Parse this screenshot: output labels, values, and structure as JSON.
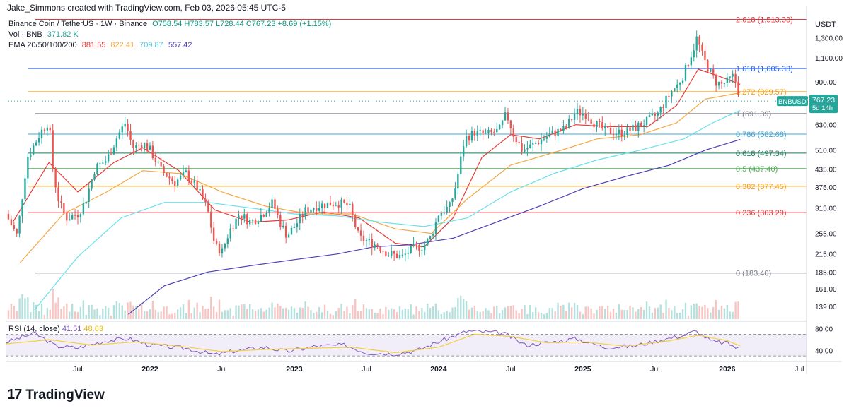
{
  "header": {
    "credit": "Jake_Simmons created with TradingView.com, Feb 03, 2026 05:45 UTC-5"
  },
  "legend": {
    "symbol": "Binance Coin / TetherUS · 1W · Binance",
    "ohlc": "O758.54 H783.57 L728.44 C767.23 +8.69 (+1.15%)",
    "vol_label": "Vol · BNB",
    "vol_value": "371.82 K",
    "ema_label": "EMA 20/50/100/200",
    "ema20": "881.55",
    "ema50": "822.41",
    "ema100": "709.87",
    "ema200": "557.42"
  },
  "colors": {
    "up": "#26a69a",
    "down": "#ef5350",
    "ema20": "#e53935",
    "ema50": "#f5a742",
    "ema100": "#67e0ee",
    "ema200": "#4a3fb5",
    "rsi": "#7e57c2",
    "rsi_ma": "#f4d03f"
  },
  "footer": {
    "logo_mark": "17",
    "brand": "TradingView"
  },
  "chart_data": {
    "type": "candlestick",
    "title": "Binance Coin / TetherUS · 1W · Binance",
    "y_axis_label": "USDT",
    "y_scale": "log",
    "ylim": [
      125,
      1600
    ],
    "y_ticks": [
      "1,300.00",
      "1,100.00",
      "900.00",
      "630.00",
      "510.00",
      "435.00",
      "375.00",
      "315.00",
      "255.00",
      "215.00",
      "185.00",
      "161.00",
      "139.00"
    ],
    "x_ticks": [
      "Jul",
      "2022",
      "Jul",
      "2023",
      "Jul",
      "2024",
      "Jul",
      "2025",
      "Jul",
      "2026",
      "Jul"
    ],
    "x_tick_years": [
      2021.5,
      2022.0,
      2022.5,
      2023.0,
      2023.5,
      2024.0,
      2024.5,
      2025.0,
      2025.5,
      2026.0,
      2026.5
    ],
    "x_range_years": [
      2021.0,
      2026.55
    ],
    "last_price": {
      "symbol": "BNBUSDT",
      "price": "767.23",
      "countdown": "5d 14h",
      "value": 767.23
    },
    "fib_levels": [
      {
        "label": "2.618 (1,513.33)",
        "value": 1513.33,
        "color": "#e03a3e"
      },
      {
        "label": "1.618 (1,005.33)",
        "value": 1005.33,
        "color": "#2962ff"
      },
      {
        "label": "1.272 (829.57)",
        "value": 829.57,
        "color": "#f39c12"
      },
      {
        "label": "1 (691.39)",
        "value": 691.39,
        "color": "#787b86"
      },
      {
        "label": "0.786 (582.68)",
        "value": 582.68,
        "color": "#3fa9d6"
      },
      {
        "label": "0.618 (497.34)",
        "value": 497.34,
        "color": "#1b7a5a"
      },
      {
        "label": "0.5 (437.40)",
        "value": 437.4,
        "color": "#4caf50"
      },
      {
        "label": "0.382 (377.45)",
        "value": 377.45,
        "color": "#f39c12"
      },
      {
        "label": "0.236 (303.29)",
        "value": 303.29,
        "color": "#e03a3e"
      },
      {
        "label": "0 (183.40)",
        "value": 183.4,
        "color": "#787b86"
      }
    ],
    "price_path": [
      [
        2021.0,
        300
      ],
      [
        2021.08,
        250
      ],
      [
        2021.15,
        480
      ],
      [
        2021.25,
        600
      ],
      [
        2021.3,
        650
      ],
      [
        2021.33,
        420
      ],
      [
        2021.37,
        330
      ],
      [
        2021.42,
        290
      ],
      [
        2021.5,
        300
      ],
      [
        2021.55,
        330
      ],
      [
        2021.62,
        440
      ],
      [
        2021.7,
        470
      ],
      [
        2021.78,
        580
      ],
      [
        2021.83,
        640
      ],
      [
        2021.88,
        520
      ],
      [
        2021.95,
        540
      ],
      [
        2022.0,
        510
      ],
      [
        2022.08,
        430
      ],
      [
        2022.17,
        390
      ],
      [
        2022.25,
        420
      ],
      [
        2022.33,
        370
      ],
      [
        2022.4,
        310
      ],
      [
        2022.45,
        230
      ],
      [
        2022.5,
        220
      ],
      [
        2022.55,
        260
      ],
      [
        2022.62,
        300
      ],
      [
        2022.7,
        280
      ],
      [
        2022.78,
        300
      ],
      [
        2022.85,
        330
      ],
      [
        2022.9,
        280
      ],
      [
        2022.95,
        250
      ],
      [
        2023.0,
        270
      ],
      [
        2023.08,
        310
      ],
      [
        2023.15,
        320
      ],
      [
        2023.22,
        325
      ],
      [
        2023.3,
        330
      ],
      [
        2023.38,
        320
      ],
      [
        2023.45,
        245
      ],
      [
        2023.5,
        240
      ],
      [
        2023.58,
        230
      ],
      [
        2023.65,
        215
      ],
      [
        2023.75,
        210
      ],
      [
        2023.82,
        225
      ],
      [
        2023.9,
        230
      ],
      [
        2023.95,
        250
      ],
      [
        2024.0,
        300
      ],
      [
        2024.08,
        320
      ],
      [
        2024.12,
        380
      ],
      [
        2024.18,
        560
      ],
      [
        2024.25,
        590
      ],
      [
        2024.33,
        580
      ],
      [
        2024.42,
        600
      ],
      [
        2024.47,
        690
      ],
      [
        2024.52,
        580
      ],
      [
        2024.58,
        510
      ],
      [
        2024.65,
        530
      ],
      [
        2024.72,
        560
      ],
      [
        2024.8,
        590
      ],
      [
        2024.88,
        610
      ],
      [
        2024.95,
        700
      ],
      [
        2025.02,
        690
      ],
      [
        2025.08,
        640
      ],
      [
        2025.15,
        600
      ],
      [
        2025.25,
        590
      ],
      [
        2025.32,
        600
      ],
      [
        2025.4,
        630
      ],
      [
        2025.45,
        650
      ],
      [
        2025.52,
        690
      ],
      [
        2025.58,
        780
      ],
      [
        2025.62,
        840
      ],
      [
        2025.66,
        880
      ],
      [
        2025.7,
        960
      ],
      [
        2025.74,
        1100
      ],
      [
        2025.77,
        1200
      ],
      [
        2025.79,
        1300
      ],
      [
        2025.82,
        1150
      ],
      [
        2025.85,
        1050
      ],
      [
        2025.88,
        980
      ],
      [
        2025.92,
        900
      ],
      [
        2025.96,
        880
      ],
      [
        2026.0,
        900
      ],
      [
        2026.04,
        940
      ],
      [
        2026.07,
        880
      ],
      [
        2026.09,
        767
      ]
    ],
    "ema_paths": [
      {
        "name": "EMA 20",
        "value": 881.55,
        "points": [
          [
            2021.05,
            280
          ],
          [
            2021.3,
            460
          ],
          [
            2021.5,
            360
          ],
          [
            2021.75,
            460
          ],
          [
            2021.95,
            520
          ],
          [
            2022.2,
            430
          ],
          [
            2022.45,
            310
          ],
          [
            2022.7,
            280
          ],
          [
            2022.95,
            285
          ],
          [
            2023.2,
            305
          ],
          [
            2023.45,
            290
          ],
          [
            2023.7,
            235
          ],
          [
            2023.9,
            228
          ],
          [
            2024.1,
            290
          ],
          [
            2024.3,
            480
          ],
          [
            2024.5,
            580
          ],
          [
            2024.7,
            560
          ],
          [
            2024.95,
            630
          ],
          [
            2025.2,
            620
          ],
          [
            2025.45,
            620
          ],
          [
            2025.65,
            740
          ],
          [
            2025.8,
            1000
          ],
          [
            2025.95,
            940
          ],
          [
            2026.09,
            882
          ]
        ]
      },
      {
        "name": "EMA 50",
        "value": 822.41,
        "points": [
          [
            2021.1,
            200
          ],
          [
            2021.4,
            300
          ],
          [
            2021.7,
            360
          ],
          [
            2021.95,
            430
          ],
          [
            2022.2,
            420
          ],
          [
            2022.5,
            360
          ],
          [
            2022.8,
            320
          ],
          [
            2023.1,
            300
          ],
          [
            2023.4,
            300
          ],
          [
            2023.7,
            265
          ],
          [
            2023.95,
            255
          ],
          [
            2024.2,
            340
          ],
          [
            2024.5,
            450
          ],
          [
            2024.8,
            500
          ],
          [
            2025.1,
            560
          ],
          [
            2025.4,
            580
          ],
          [
            2025.65,
            640
          ],
          [
            2025.85,
            780
          ],
          [
            2026.09,
            822
          ]
        ]
      },
      {
        "name": "EMA 100",
        "value": 709.87,
        "points": [
          [
            2021.2,
            135
          ],
          [
            2021.5,
            210
          ],
          [
            2021.8,
            290
          ],
          [
            2022.1,
            330
          ],
          [
            2022.4,
            330
          ],
          [
            2022.7,
            315
          ],
          [
            2023.0,
            300
          ],
          [
            2023.3,
            295
          ],
          [
            2023.6,
            280
          ],
          [
            2023.9,
            270
          ],
          [
            2024.2,
            290
          ],
          [
            2024.5,
            360
          ],
          [
            2024.8,
            420
          ],
          [
            2025.1,
            470
          ],
          [
            2025.4,
            510
          ],
          [
            2025.7,
            560
          ],
          [
            2025.9,
            640
          ],
          [
            2026.09,
            710
          ]
        ]
      },
      {
        "name": "EMA 200",
        "value": 557.42,
        "points": [
          [
            2021.85,
            130
          ],
          [
            2022.1,
            165
          ],
          [
            2022.4,
            185
          ],
          [
            2022.7,
            195
          ],
          [
            2023.0,
            205
          ],
          [
            2023.3,
            215
          ],
          [
            2023.55,
            228
          ],
          [
            2023.8,
            232
          ],
          [
            2024.1,
            245
          ],
          [
            2024.4,
            280
          ],
          [
            2024.7,
            320
          ],
          [
            2025.0,
            370
          ],
          [
            2025.3,
            410
          ],
          [
            2025.6,
            450
          ],
          [
            2025.85,
            510
          ],
          [
            2026.09,
            557
          ]
        ]
      }
    ],
    "rsi": {
      "label": "RSI (14, close)",
      "value": "41.51",
      "ma_value": "48.63",
      "ticks": [
        "80.00",
        "40.00"
      ],
      "ylim": [
        25,
        90
      ],
      "upper_band": 70,
      "lower_band": 30,
      "points": [
        [
          2021.0,
          55
        ],
        [
          2021.2,
          72
        ],
        [
          2021.35,
          48
        ],
        [
          2021.5,
          45
        ],
        [
          2021.7,
          58
        ],
        [
          2021.85,
          62
        ],
        [
          2022.0,
          50
        ],
        [
          2022.25,
          44
        ],
        [
          2022.45,
          32
        ],
        [
          2022.6,
          40
        ],
        [
          2022.8,
          46
        ],
        [
          2022.95,
          38
        ],
        [
          2023.15,
          48
        ],
        [
          2023.35,
          50
        ],
        [
          2023.5,
          36
        ],
        [
          2023.7,
          34
        ],
        [
          2023.85,
          40
        ],
        [
          2024.0,
          56
        ],
        [
          2024.2,
          76
        ],
        [
          2024.45,
          72
        ],
        [
          2024.6,
          50
        ],
        [
          2024.8,
          56
        ],
        [
          2024.95,
          62
        ],
        [
          2025.15,
          46
        ],
        [
          2025.35,
          48
        ],
        [
          2025.55,
          60
        ],
        [
          2025.7,
          68
        ],
        [
          2025.78,
          76
        ],
        [
          2025.9,
          56
        ],
        [
          2026.0,
          54
        ],
        [
          2026.09,
          41.5
        ]
      ],
      "ma_points": [
        [
          2021.0,
          52
        ],
        [
          2021.3,
          60
        ],
        [
          2021.6,
          50
        ],
        [
          2021.9,
          56
        ],
        [
          2022.2,
          48
        ],
        [
          2022.5,
          38
        ],
        [
          2022.8,
          42
        ],
        [
          2023.1,
          44
        ],
        [
          2023.4,
          46
        ],
        [
          2023.7,
          36
        ],
        [
          2024.0,
          46
        ],
        [
          2024.25,
          70
        ],
        [
          2024.5,
          66
        ],
        [
          2024.75,
          54
        ],
        [
          2025.0,
          56
        ],
        [
          2025.3,
          48
        ],
        [
          2025.6,
          58
        ],
        [
          2025.8,
          68
        ],
        [
          2026.0,
          58
        ],
        [
          2026.09,
          48.6
        ]
      ]
    }
  }
}
